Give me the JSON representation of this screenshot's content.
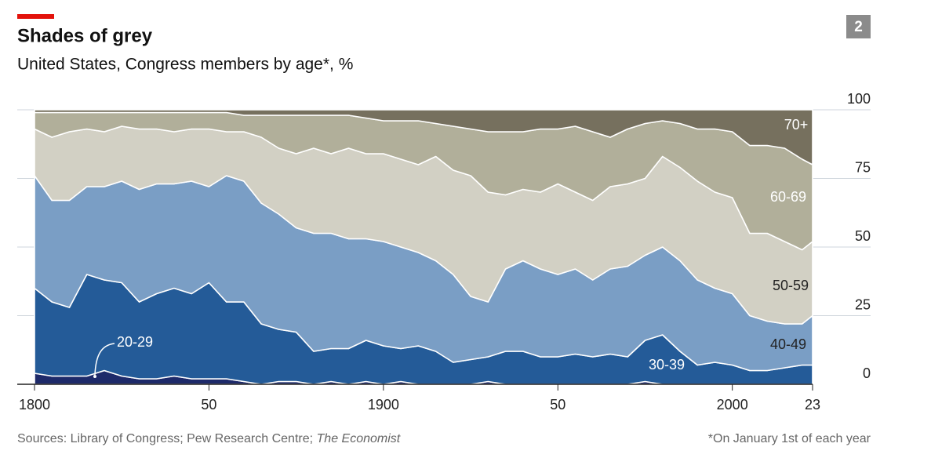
{
  "chart_data": {
    "type": "stacked_area",
    "badge": "2",
    "title": "Shades of grey",
    "subtitle": "United States, Congress members by age*, %",
    "source": "Sources: Library of Congress; Pew Research Centre;",
    "source_italic": "The Economist",
    "note": "*On January 1st of each year",
    "x": [
      1800,
      1805,
      1810,
      1815,
      1820,
      1825,
      1830,
      1835,
      1840,
      1845,
      1850,
      1855,
      1860,
      1865,
      1870,
      1875,
      1880,
      1885,
      1890,
      1895,
      1900,
      1905,
      1910,
      1915,
      1920,
      1925,
      1930,
      1935,
      1940,
      1945,
      1950,
      1955,
      1960,
      1965,
      1970,
      1975,
      1980,
      1985,
      1990,
      1995,
      2000,
      2005,
      2010,
      2015,
      2020,
      2023
    ],
    "series": [
      {
        "name": "20-29",
        "color": "#1e2a6a",
        "values": [
          4,
          3,
          3,
          3,
          5,
          3,
          2,
          2,
          3,
          2,
          2,
          2,
          1,
          0,
          1,
          1,
          0,
          1,
          0,
          1,
          0,
          1,
          0,
          0,
          0,
          0,
          1,
          0,
          0,
          0,
          0,
          0,
          0,
          0,
          0,
          1,
          0,
          0,
          0,
          0,
          0,
          0,
          0,
          0,
          0,
          0
        ]
      },
      {
        "name": "30-39",
        "color": "#245b98",
        "values": [
          31,
          27,
          25,
          37,
          33,
          34,
          28,
          31,
          32,
          31,
          35,
          28,
          29,
          22,
          19,
          18,
          12,
          12,
          13,
          15,
          14,
          12,
          14,
          12,
          8,
          9,
          9,
          12,
          12,
          10,
          10,
          11,
          10,
          11,
          10,
          15,
          18,
          12,
          7,
          8,
          7,
          5,
          5,
          6,
          7,
          7
        ]
      },
      {
        "name": "40-49",
        "color": "#7a9ec5",
        "values": [
          41,
          37,
          39,
          32,
          34,
          37,
          41,
          40,
          38,
          41,
          35,
          46,
          44,
          44,
          42,
          38,
          43,
          42,
          40,
          37,
          38,
          37,
          34,
          33,
          32,
          23,
          20,
          30,
          33,
          32,
          30,
          31,
          28,
          31,
          33,
          31,
          32,
          33,
          31,
          27,
          26,
          20,
          18,
          16,
          15,
          18
        ]
      },
      {
        "name": "50-59",
        "color": "#d2d0c4",
        "values": [
          17,
          23,
          25,
          21,
          20,
          20,
          22,
          20,
          19,
          19,
          21,
          16,
          18,
          24,
          24,
          27,
          31,
          29,
          33,
          31,
          32,
          32,
          32,
          38,
          38,
          44,
          40,
          27,
          26,
          28,
          33,
          28,
          29,
          30,
          30,
          28,
          33,
          34,
          36,
          35,
          35,
          30,
          32,
          30,
          27,
          27
        ]
      },
      {
        "name": "60-69",
        "color": "#b1af9a",
        "values": [
          6,
          9,
          7,
          6,
          7,
          5,
          6,
          6,
          7,
          6,
          6,
          7,
          6,
          8,
          12,
          14,
          12,
          14,
          12,
          13,
          12,
          14,
          16,
          12,
          16,
          17,
          22,
          23,
          21,
          23,
          20,
          24,
          25,
          18,
          20,
          20,
          13,
          16,
          19,
          23,
          24,
          32,
          32,
          34,
          33,
          28
        ]
      },
      {
        "name": "70+",
        "color": "#76705e",
        "values": [
          1,
          1,
          1,
          1,
          1,
          1,
          1,
          1,
          1,
          1,
          1,
          1,
          2,
          2,
          2,
          2,
          2,
          2,
          2,
          3,
          4,
          4,
          4,
          5,
          6,
          7,
          8,
          8,
          8,
          7,
          7,
          6,
          8,
          10,
          7,
          5,
          4,
          5,
          7,
          7,
          8,
          13,
          13,
          14,
          18,
          20
        ]
      }
    ],
    "xlim": [
      1800,
      2023
    ],
    "xticks": [
      1800,
      {
        "value": 1850,
        "label": "50"
      },
      1900,
      {
        "value": 1950,
        "label": "50"
      },
      2000,
      {
        "value": 2023,
        "label": "23"
      }
    ],
    "ylim": [
      0,
      100
    ],
    "yticks": [
      0,
      25,
      50,
      75,
      100
    ],
    "grid": true
  }
}
